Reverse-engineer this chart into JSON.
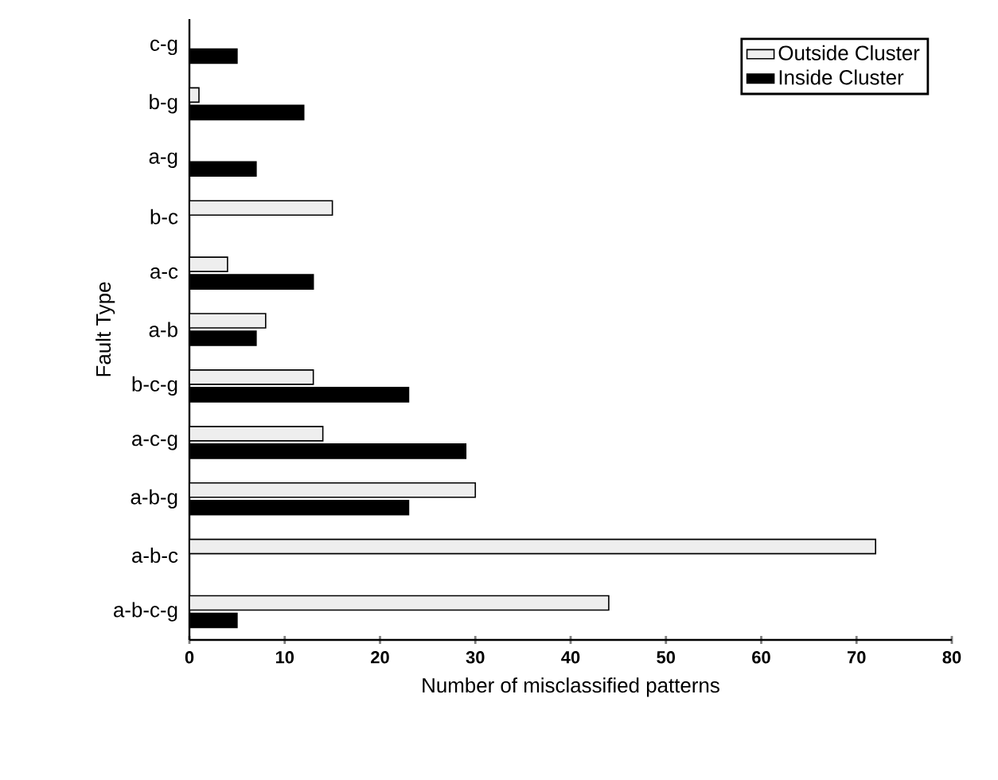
{
  "chart_data": {
    "type": "bar",
    "orientation": "horizontal",
    "xlabel": "Number of  misclassified patterns",
    "ylabel": "Fault Type",
    "categories": [
      "c-g",
      "b-g",
      "a-g",
      "b-c",
      "a-c",
      "a-b",
      "b-c-g",
      "a-c-g",
      "a-b-g",
      "a-b-c",
      "a-b-c-g"
    ],
    "series": [
      {
        "name": "Outside Cluster",
        "color": "#eeeeee",
        "values": [
          0,
          1,
          0,
          15,
          4,
          8,
          13,
          14,
          30,
          72,
          44
        ]
      },
      {
        "name": "Inside Cluster",
        "color": "#000000",
        "values": [
          5,
          12,
          7,
          0,
          13,
          7,
          23,
          29,
          23,
          0,
          5
        ]
      }
    ],
    "xlim": [
      0,
      80
    ],
    "xticks": [
      0,
      10,
      20,
      30,
      40,
      50,
      60,
      70,
      80
    ],
    "legend": "top right",
    "grid": false
  }
}
